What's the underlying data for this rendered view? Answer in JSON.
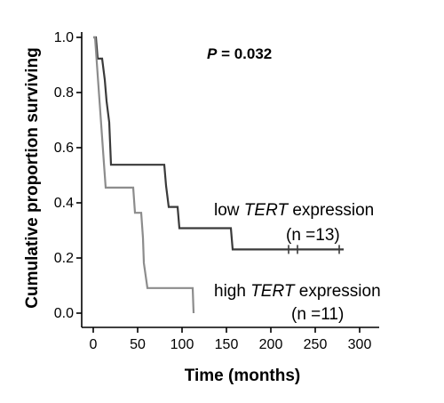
{
  "chart_data": {
    "type": "line",
    "step": true,
    "xlabel": "Time (months)",
    "ylabel": "Cumulative proportion surviving",
    "xlim": [
      0,
      300
    ],
    "ylim": [
      0,
      1.0
    ],
    "xticks": [
      "0",
      "50",
      "100",
      "150",
      "200",
      "250",
      "300"
    ],
    "yticks": [
      "0.0",
      "0.2",
      "0.4",
      "0.6",
      "0.8",
      "1.0"
    ],
    "grid": false,
    "p_value": {
      "prefix": "P",
      "text": " = 0.032"
    },
    "series": [
      {
        "label_parts": {
          "pre": "low ",
          "gene": "TERT",
          "post": " expression"
        },
        "n_label": "(n =13)",
        "color": "#3a3a3a",
        "points": [
          [
            0,
            1.0
          ],
          [
            3,
            1.0
          ],
          [
            5,
            0.923
          ],
          [
            10,
            0.923
          ],
          [
            13,
            0.846
          ],
          [
            15,
            0.769
          ],
          [
            18,
            0.692
          ],
          [
            19,
            0.615
          ],
          [
            20,
            0.538
          ],
          [
            80,
            0.538
          ],
          [
            82,
            0.462
          ],
          [
            85,
            0.385
          ],
          [
            95,
            0.385
          ],
          [
            97,
            0.308
          ],
          [
            155,
            0.308
          ],
          [
            157,
            0.231
          ],
          [
            282,
            0.231
          ]
        ],
        "censored": [
          [
            220,
            0.231
          ],
          [
            230,
            0.231
          ],
          [
            277,
            0.231
          ]
        ]
      },
      {
        "label_parts": {
          "pre": "high ",
          "gene": "TERT",
          "post": " expression"
        },
        "n_label": "(n =11)",
        "color": "#8c8c8c",
        "points": [
          [
            0,
            1.0
          ],
          [
            2,
            1.0
          ],
          [
            4,
            0.909
          ],
          [
            6,
            0.818
          ],
          [
            8,
            0.727
          ],
          [
            10,
            0.636
          ],
          [
            12,
            0.545
          ],
          [
            14,
            0.455
          ],
          [
            45,
            0.455
          ],
          [
            47,
            0.364
          ],
          [
            54,
            0.364
          ],
          [
            56,
            0.273
          ],
          [
            57,
            0.182
          ],
          [
            61,
            0.091
          ],
          [
            112,
            0.091
          ],
          [
            113,
            0.0
          ]
        ],
        "censored": []
      }
    ]
  }
}
